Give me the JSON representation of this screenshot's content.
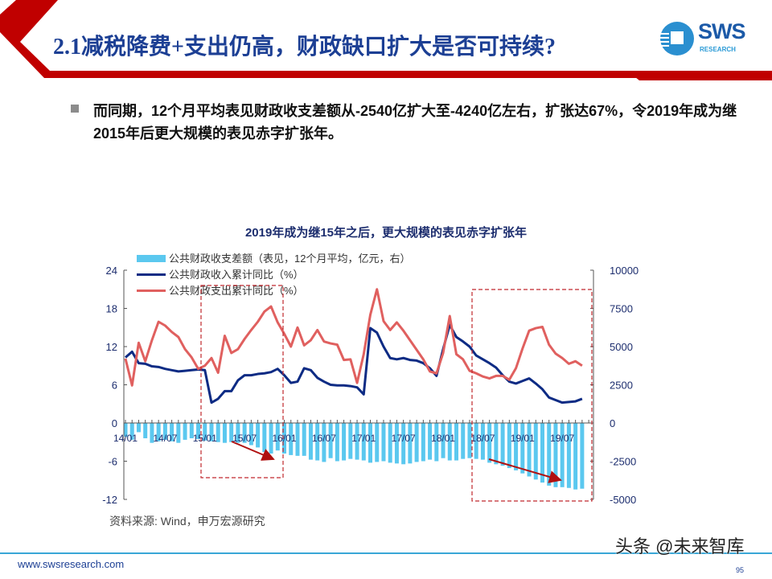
{
  "header": {
    "title": "2.1减税降费+支出仍高，财政缺口扩大是否可持续?",
    "logo_text": "SWS",
    "logo_sub": "RESEARCH",
    "accent_color": "#c00000",
    "title_color": "#1c3f94"
  },
  "body": {
    "bullet_icon": "square-bullet-icon",
    "paragraph": "而同期，12个月平均表见财政收支差额从-2540亿扩大至-4240亿左右，扩张达67%，令2019年成为继2015年后更大规模的表见赤字扩张年。"
  },
  "chart_data": {
    "type": "bar+line",
    "title": "2019年成为继15年之后，更大规模的表见赤字扩张年",
    "x_tick_labels": [
      "14/01",
      "14/07",
      "15/01",
      "15/07",
      "16/01",
      "16/07",
      "17/01",
      "17/07",
      "18/01",
      "18/07",
      "19/01",
      "19/07"
    ],
    "x_start": "2014-01",
    "x_end": "2019-10",
    "left_axis": {
      "ylim": [
        -12,
        24
      ],
      "ticks": [
        "-12",
        "-6",
        "0",
        "6",
        "12",
        "18",
        "24"
      ]
    },
    "right_axis": {
      "ylim": [
        -5000,
        10000
      ],
      "ticks": [
        "-5000",
        "-2500",
        "0",
        "2500",
        "5000",
        "7500",
        "10000"
      ]
    },
    "legend_placement": "top-left",
    "series": [
      {
        "name": "公共财政收支差额（表见，12个月平均，亿元，右）",
        "type": "bar",
        "axis": "right",
        "color": "#5bc8ef",
        "values": [
          -900,
          -1100,
          -600,
          -1000,
          -1300,
          -1200,
          -1100,
          -1200,
          -1300,
          -1100,
          -1000,
          -1050,
          -1150,
          -1200,
          -1250,
          -1300,
          -1250,
          -1300,
          -1300,
          -1450,
          -1600,
          -1900,
          -2000,
          -1800,
          -2000,
          -2100,
          -2150,
          -2150,
          -2400,
          -2450,
          -2550,
          -2300,
          -2500,
          -2450,
          -2350,
          -2400,
          -2450,
          -2600,
          -2550,
          -2500,
          -2600,
          -2650,
          -2700,
          -2650,
          -2550,
          -2500,
          -2400,
          -2500,
          -2300,
          -2450,
          -2450,
          -2350,
          -2300,
          -2350,
          -2400,
          -2600,
          -2700,
          -2800,
          -2950,
          -3100,
          -3300,
          -3500,
          -3700,
          -3900,
          -4100,
          -4200,
          -4200,
          -4250,
          -4350,
          -4300
        ]
      },
      {
        "name": "公共财政收入累计同比（%）",
        "type": "line",
        "axis": "left",
        "color": "#0d2b84",
        "values": [
          10.3,
          11.2,
          9.4,
          9.3,
          8.9,
          8.8,
          8.5,
          8.3,
          8.1,
          8.2,
          8.3,
          8.4,
          8.3,
          3.2,
          3.8,
          5.0,
          5.0,
          6.7,
          7.5,
          7.5,
          7.7,
          7.8,
          8.0,
          8.5,
          7.5,
          6.3,
          6.5,
          8.6,
          8.3,
          7.1,
          6.5,
          6.0,
          5.9,
          5.9,
          5.8,
          5.6,
          4.5,
          14.9,
          14.2,
          12.0,
          10.2,
          10.0,
          10.2,
          9.9,
          9.8,
          9.4,
          8.6,
          7.4,
          11.6,
          15.4,
          13.5,
          12.8,
          12.0,
          10.6,
          10.0,
          9.4,
          8.7,
          7.5,
          6.5,
          6.2,
          6.6,
          7.0,
          6.2,
          5.3,
          4.0,
          3.6,
          3.2,
          3.3,
          3.4,
          3.8
        ]
      },
      {
        "name": "公共财政支出累计同比（%）",
        "type": "line",
        "axis": "left",
        "color": "#e0605f",
        "values": [
          10.1,
          5.9,
          12.6,
          9.7,
          13.0,
          15.9,
          15.3,
          14.3,
          13.5,
          11.6,
          10.3,
          8.5,
          9.0,
          10.2,
          7.9,
          13.7,
          11.0,
          11.6,
          13.2,
          14.6,
          15.9,
          17.5,
          18.3,
          15.8,
          14.0,
          12.0,
          15.0,
          12.2,
          13.0,
          14.6,
          12.8,
          12.5,
          12.3,
          9.9,
          10.0,
          6.3,
          10.8,
          17.0,
          21.0,
          16.0,
          14.6,
          15.8,
          14.5,
          13.0,
          11.5,
          10.0,
          8.1,
          7.8,
          11.0,
          16.8,
          10.8,
          10.0,
          8.2,
          7.8,
          7.3,
          7.0,
          7.4,
          7.4,
          6.8,
          8.6,
          11.7,
          14.5,
          14.9,
          15.1,
          12.3,
          10.9,
          10.2,
          9.3,
          9.7,
          9.0
        ]
      }
    ],
    "annotations": {
      "highlight_color": "#c0282d"
    },
    "source": "资料来源: Wind，申万宏源研究"
  },
  "footer": {
    "url": "www.swsresearch.com",
    "page_number": "95",
    "watermark": "头条 @未来智库"
  }
}
